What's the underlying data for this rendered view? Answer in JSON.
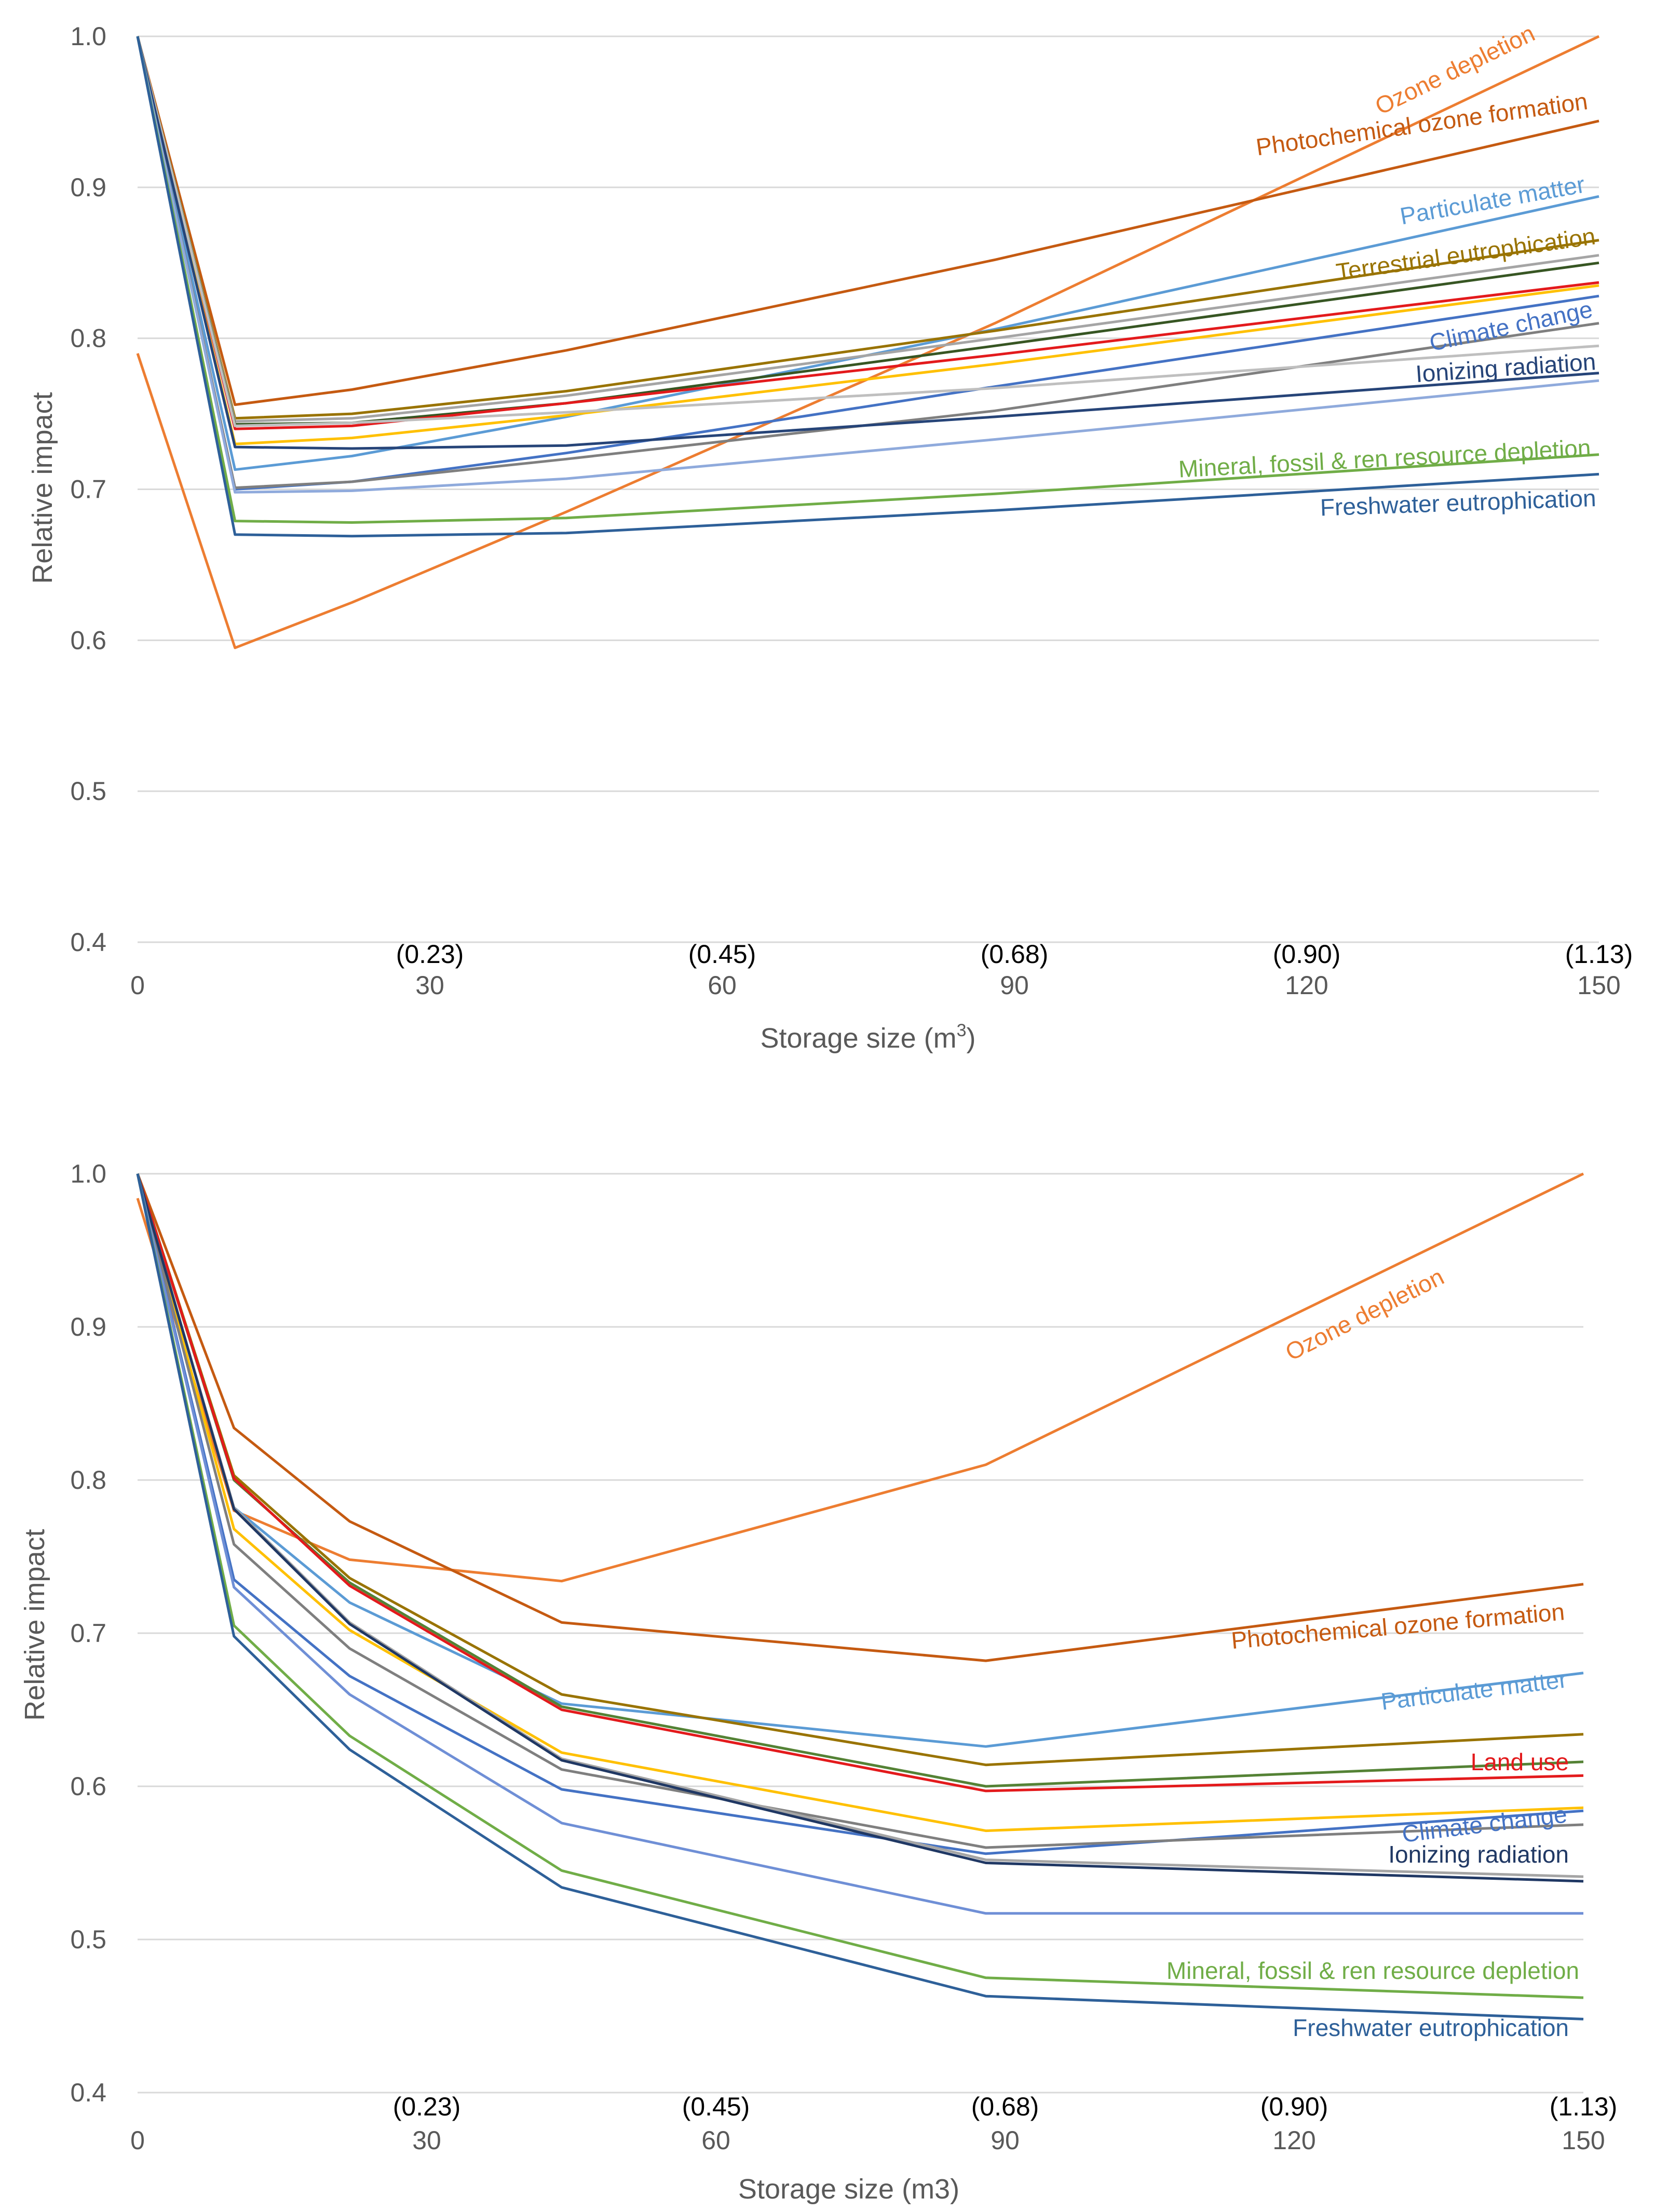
{
  "chart_data": [
    {
      "type": "line",
      "title": "",
      "xlabel": "Storage size (m",
      "xlabel_sup": "3",
      "xlabel_tail": ")",
      "ylabel": "Relative impact",
      "ylim": [
        0.4,
        1.0
      ],
      "xlim": [
        0,
        150
      ],
      "y_ticks": [
        "0.4",
        "0.5",
        "0.6",
        "0.7",
        "0.8",
        "0.9",
        "1.0"
      ],
      "x_ticks": [
        "0",
        "30",
        "60",
        "90",
        "120",
        "150"
      ],
      "x_sublabels": [
        "(0.23)",
        "(0.45)",
        "(0.68)",
        "(0.90)",
        "(1.13)"
      ],
      "x": [
        0,
        10,
        22,
        44,
        88,
        150
      ],
      "series": [
        {
          "name": "Ozone depletion",
          "color": "#ed7d31",
          "values": [
            0.79,
            0.595,
            0.625,
            0.685,
            0.81,
            1.0
          ],
          "label": "Ozone depletion"
        },
        {
          "name": "Photochemical ozone formation",
          "color": "#c55a11",
          "values": [
            1.0,
            0.756,
            0.766,
            0.792,
            0.852,
            0.944
          ],
          "label": "Photochemical ozone formation"
        },
        {
          "name": "Particulate matter",
          "color": "#5b9bd5",
          "values": [
            1.0,
            0.713,
            0.722,
            0.748,
            0.806,
            0.894
          ],
          "label": "Particulate matter"
        },
        {
          "name": "Terrestrial eutrophication",
          "color": "#997300",
          "values": [
            1.0,
            0.747,
            0.75,
            0.765,
            0.805,
            0.865
          ],
          "label": "Terrestrial eutrophication"
        },
        {
          "name": "Series grey",
          "color": "#a5a5a5",
          "values": [
            1.0,
            0.745,
            0.747,
            0.762,
            0.8,
            0.855
          ],
          "label": ""
        },
        {
          "name": "Series dark green",
          "color": "#375623",
          "values": [
            1.0,
            0.743,
            0.744,
            0.757,
            0.795,
            0.85
          ],
          "label": ""
        },
        {
          "name": "Land use",
          "color": "#e31a1c",
          "values": [
            1.0,
            0.74,
            0.742,
            0.757,
            0.789,
            0.837
          ],
          "label": ""
        },
        {
          "name": "Series yellow",
          "color": "#ffc000",
          "values": [
            1.0,
            0.73,
            0.734,
            0.749,
            0.783,
            0.835
          ],
          "label": ""
        },
        {
          "name": "Climate change",
          "color": "#4472c4",
          "values": [
            1.0,
            0.7,
            0.705,
            0.724,
            0.768,
            0.828
          ],
          "label": "Climate change"
        },
        {
          "name": "Series dark grey",
          "color": "#7f7f7f",
          "values": [
            1.0,
            0.701,
            0.705,
            0.72,
            0.752,
            0.81
          ],
          "label": ""
        },
        {
          "name": "Series light grey",
          "color": "#bfbfbf",
          "values": [
            1.0,
            0.742,
            0.744,
            0.751,
            0.767,
            0.795
          ],
          "label": ""
        },
        {
          "name": "Ionizing radiation",
          "color": "#264478",
          "values": [
            1.0,
            0.728,
            0.727,
            0.729,
            0.748,
            0.777
          ],
          "label": "Ionizing radiation"
        },
        {
          "name": "Series light blue",
          "color": "#8faadc",
          "values": [
            1.0,
            0.698,
            0.699,
            0.707,
            0.733,
            0.772
          ],
          "label": ""
        },
        {
          "name": "Mineral, fossil & ren resource depletion",
          "color": "#70ad47",
          "values": [
            1.0,
            0.679,
            0.678,
            0.681,
            0.697,
            0.723
          ],
          "label": "Mineral, fossil & ren resource depletion"
        },
        {
          "name": "Freshwater eutrophication",
          "color": "#2e6099",
          "values": [
            1.0,
            0.67,
            0.669,
            0.671,
            0.686,
            0.71
          ],
          "label": "Freshwater eutrophication"
        }
      ]
    },
    {
      "type": "line",
      "title": "",
      "xlabel": "Storage size (m3)",
      "ylabel": "Relative impact",
      "ylim": [
        0.4,
        1.0
      ],
      "xlim": [
        0,
        150
      ],
      "y_ticks": [
        "0.4",
        "0.5",
        "0.6",
        "0.7",
        "0.8",
        "0.9",
        "1.0"
      ],
      "x_ticks": [
        "0",
        "30",
        "60",
        "90",
        "120",
        "150"
      ],
      "x_sublabels": [
        "(0.23)",
        "(0.45)",
        "(0.68)",
        "(0.90)",
        "(1.13)"
      ],
      "x": [
        0,
        10,
        22,
        44,
        88,
        150
      ],
      "series": [
        {
          "name": "Ozone depletion",
          "color": "#ed7d31",
          "values": [
            0.984,
            0.78,
            0.748,
            0.734,
            0.81,
            1.0
          ],
          "label": "Ozone depletion"
        },
        {
          "name": "Photochemical ozone formation",
          "color": "#c55a11",
          "values": [
            1.0,
            0.834,
            0.773,
            0.707,
            0.682,
            0.732
          ],
          "label": "Photochemical ozone formation"
        },
        {
          "name": "Particulate matter",
          "color": "#5b9bd5",
          "values": [
            1.0,
            0.782,
            0.72,
            0.654,
            0.626,
            0.674
          ],
          "label": "Particulate matter"
        },
        {
          "name": "Series olive",
          "color": "#997300",
          "values": [
            1.0,
            0.803,
            0.736,
            0.66,
            0.614,
            0.634
          ],
          "label": ""
        },
        {
          "name": "Series dark green",
          "color": "#548235",
          "values": [
            1.0,
            0.8,
            0.733,
            0.652,
            0.6,
            0.616
          ],
          "label": ""
        },
        {
          "name": "Land use",
          "color": "#e31a1c",
          "values": [
            1.0,
            0.801,
            0.731,
            0.65,
            0.597,
            0.607
          ],
          "label": "Land use"
        },
        {
          "name": "Series yellow",
          "color": "#ffc000",
          "values": [
            1.0,
            0.768,
            0.702,
            0.622,
            0.571,
            0.586
          ],
          "label": ""
        },
        {
          "name": "Climate change",
          "color": "#4472c4",
          "values": [
            1.0,
            0.735,
            0.672,
            0.598,
            0.556,
            0.584
          ],
          "label": "Climate change"
        },
        {
          "name": "Series dark grey",
          "color": "#7f7f7f",
          "values": [
            1.0,
            0.758,
            0.69,
            0.611,
            0.56,
            0.575
          ],
          "label": ""
        },
        {
          "name": "Series light grey",
          "color": "#a5a5a5",
          "values": [
            1.0,
            0.782,
            0.707,
            0.618,
            0.552,
            0.541
          ],
          "label": ""
        },
        {
          "name": "Ionizing radiation",
          "color": "#203864",
          "values": [
            1.0,
            0.781,
            0.706,
            0.617,
            0.55,
            0.538
          ],
          "label": "Ionizing radiation"
        },
        {
          "name": "Series light blue",
          "color": "#6f8fd6",
          "values": [
            1.0,
            0.73,
            0.66,
            0.576,
            0.517,
            0.517
          ],
          "label": ""
        },
        {
          "name": "Mineral, fossil & ren resource depletion",
          "color": "#70ad47",
          "values": [
            1.0,
            0.705,
            0.633,
            0.545,
            0.475,
            0.462
          ],
          "label": "Mineral, fossil & ren resource depletion"
        },
        {
          "name": "Freshwater eutrophication",
          "color": "#2e6099",
          "values": [
            1.0,
            0.698,
            0.624,
            0.534,
            0.463,
            0.448
          ],
          "label": "Freshwater eutrophication"
        }
      ]
    }
  ]
}
